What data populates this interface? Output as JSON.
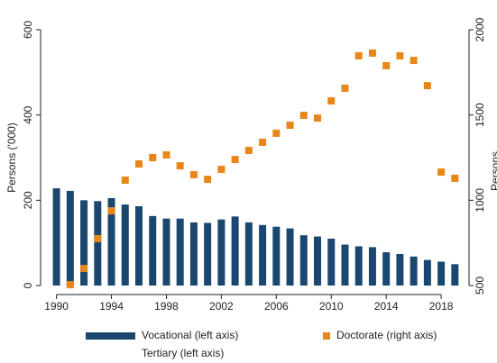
{
  "chart_data": {
    "type": "combo",
    "y_label": "Persons ('000)",
    "y2_label": "Persons",
    "x": [
      1990,
      1991,
      1992,
      1993,
      1994,
      1995,
      1996,
      1997,
      1998,
      1999,
      2000,
      2001,
      2002,
      2003,
      2004,
      2005,
      2006,
      2007,
      2008,
      2009,
      2010,
      2011,
      2012,
      2013,
      2014,
      2015,
      2016,
      2017,
      2018,
      2019
    ],
    "xlim": [
      1989.5,
      2019.7
    ],
    "xticks": [
      1990,
      1994,
      1998,
      2002,
      2006,
      2010,
      2014,
      2018
    ],
    "ylim": [
      0,
      600
    ],
    "yticks": [
      0,
      200,
      400,
      600
    ],
    "y2lim": [
      500,
      2000
    ],
    "y2ticks": [
      500,
      1000,
      1500,
      2000
    ],
    "series": [
      {
        "name": "Vocational (left axis)",
        "type": "bar",
        "color": "#1a476f",
        "values": [
          228,
          222,
          200,
          198,
          205,
          190,
          186,
          163,
          157,
          157,
          148,
          147,
          155,
          162,
          148,
          142,
          138,
          134,
          118,
          115,
          110,
          96,
          92,
          90,
          78,
          74,
          68,
          60,
          56,
          50
        ]
      },
      {
        "name": "Doctorate (right axis)",
        "type": "scatter",
        "axis": "y2",
        "color": "#e8861a",
        "values": [
          null,
          505,
          600,
          775,
          938,
          1118,
          1213,
          1250,
          1266,
          1202,
          1150,
          1123,
          1181,
          1239,
          1292,
          1340,
          1393,
          1440,
          1498,
          1482,
          1583,
          1657,
          1847,
          1863,
          1789,
          1847,
          1820,
          1672,
          1165,
          1129
        ]
      },
      {
        "name": "Tertiary (left axis)",
        "type": "bar",
        "color": "#ffffff",
        "values": [
          null,
          null,
          null,
          null,
          null,
          null,
          null,
          null,
          null,
          null,
          null,
          null,
          null,
          null,
          null,
          null,
          null,
          null,
          null,
          null,
          null,
          null,
          null,
          null,
          null,
          null,
          null,
          null,
          null,
          null
        ]
      }
    ]
  }
}
